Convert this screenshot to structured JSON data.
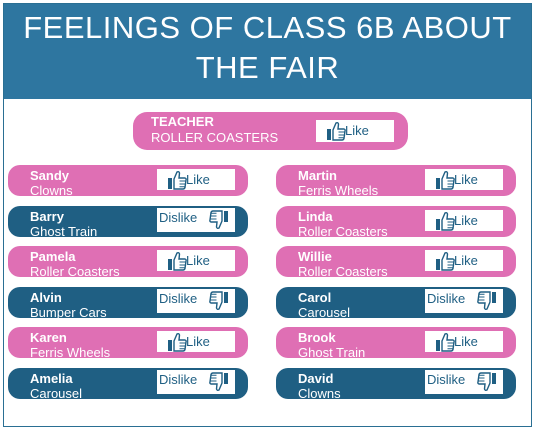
{
  "title": "FEELINGS OF CLASS 6B ABOUT THE FAIR",
  "title_lines": [
    "FEELINGS OF CLASS 6B ABOUT",
    "THE FAIR"
  ],
  "colors": {
    "banner": "#2e76a0",
    "like": "#df6fb4",
    "dislike": "#1f5f83"
  },
  "teacher": {
    "name": "TEACHER",
    "item": "ROLLER COASTERS",
    "feeling": "Like",
    "icon": "thumbs-up-icon"
  },
  "left_column": [
    {
      "name": "Sandy",
      "item": "Clowns",
      "feeling": "Like",
      "icon": "thumbs-up-icon"
    },
    {
      "name": "Barry",
      "item": "Ghost Train",
      "feeling": "Dislike",
      "icon": "thumbs-down-icon"
    },
    {
      "name": "Pamela",
      "item": "Roller Coasters",
      "feeling": "Like",
      "icon": "thumbs-up-icon"
    },
    {
      "name": "Alvin",
      "item": "Bumper Cars",
      "feeling": "Dislike",
      "icon": "thumbs-down-icon"
    },
    {
      "name": "Karen",
      "item": "Ferris Wheels",
      "feeling": "Like",
      "icon": "thumbs-up-icon"
    },
    {
      "name": "Amelia",
      "item": "Carousel",
      "feeling": "Dislike",
      "icon": "thumbs-down-icon"
    }
  ],
  "right_column": [
    {
      "name": "Martin",
      "item": "Ferris Wheels",
      "feeling": "Like",
      "icon": "thumbs-up-icon"
    },
    {
      "name": "Linda",
      "item": "Roller Coasters",
      "feeling": "Like",
      "icon": "thumbs-up-icon"
    },
    {
      "name": "Willie",
      "item": "Roller Coasters",
      "feeling": "Like",
      "icon": "thumbs-up-icon"
    },
    {
      "name": "Carol",
      "item": "Carousel",
      "feeling": "Dislike",
      "icon": "thumbs-down-icon"
    },
    {
      "name": "Brook",
      "item": "Ghost Train",
      "feeling": "Like",
      "icon": "thumbs-up-icon"
    },
    {
      "name": "David",
      "item": "Clowns",
      "feeling": "Dislike",
      "icon": "thumbs-down-icon"
    }
  ]
}
